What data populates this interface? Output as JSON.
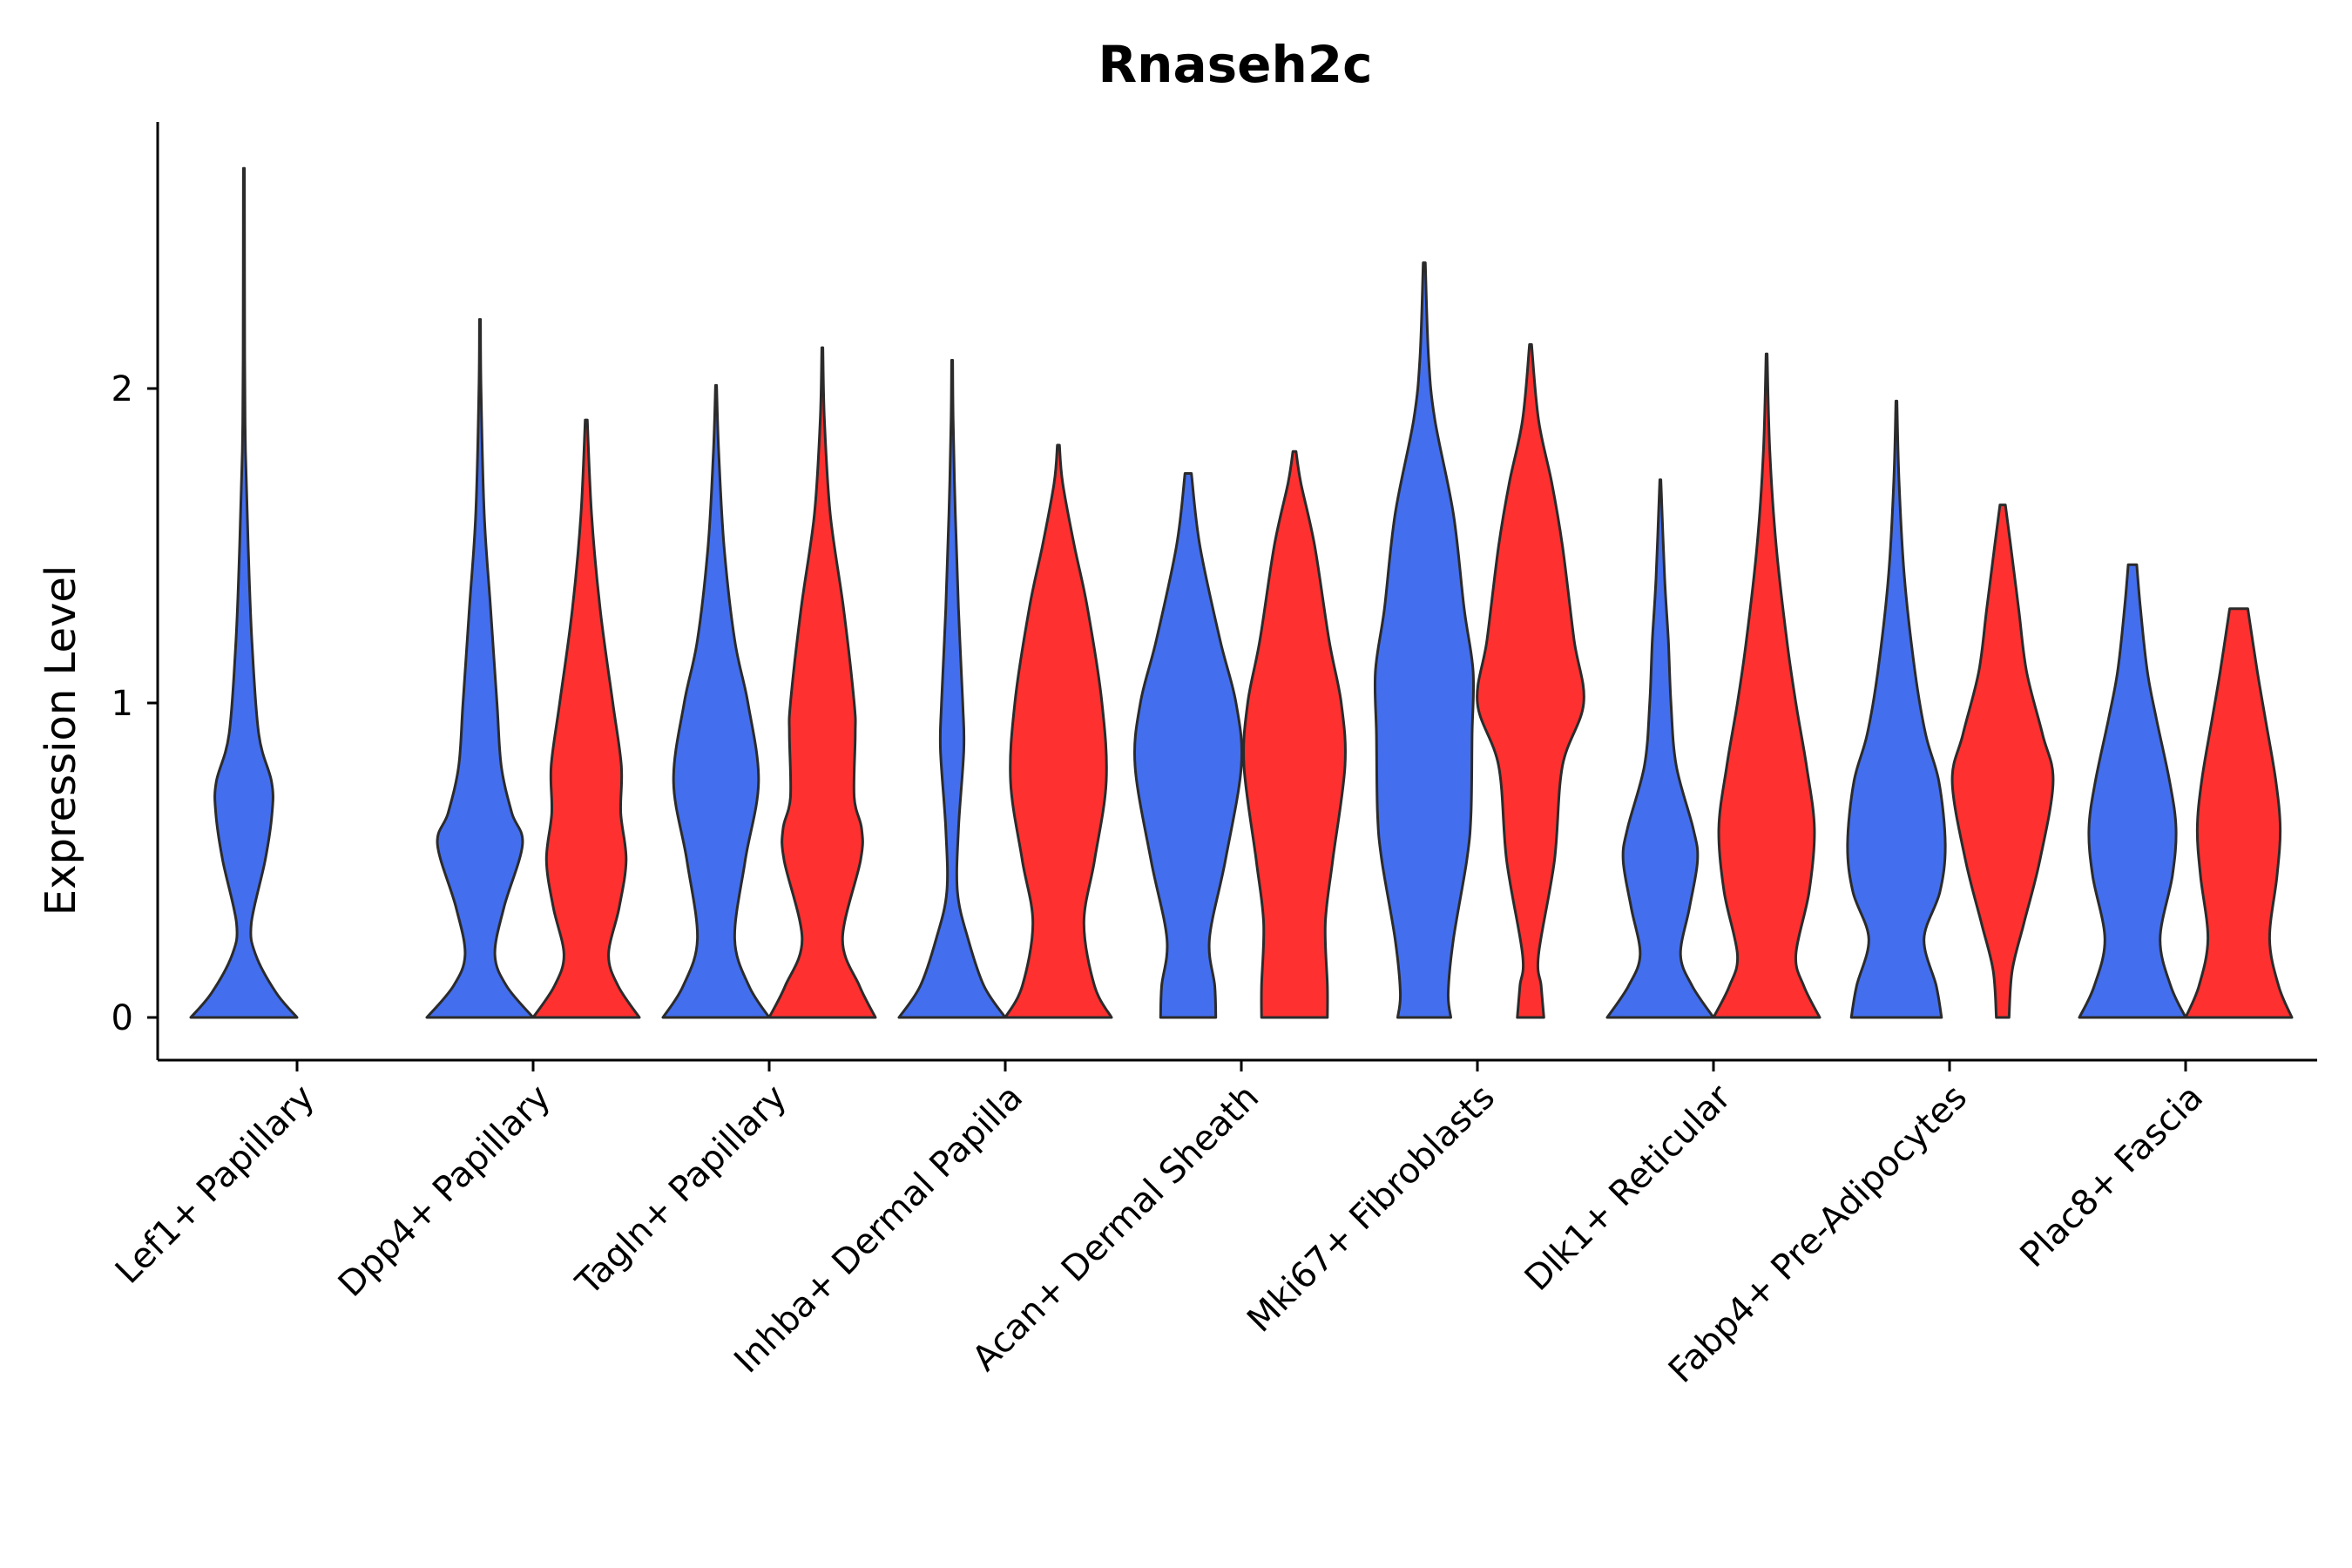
{
  "chart_data": {
    "type": "violin",
    "title": "Rnaseh2c",
    "xlabel": "",
    "ylabel": "Expression Level",
    "ylim": [
      -0.14,
      2.85
    ],
    "yticks": [
      0,
      1,
      2
    ],
    "grid": false,
    "legend": "none",
    "series_colors": [
      "#436EEE",
      "#FF3030"
    ],
    "categories": [
      "Lef1+ Papillary",
      "Dpp4+ Papillary",
      "Tagln+ Papillary",
      "Inhba+ Dermal Papilla",
      "Acan+ Dermal Sheath",
      "Mki67+ Fibroblasts",
      "Dlk1+ Reticular",
      "Fabp4+ Pre-Adipocytes",
      "Plac8+ Fascia"
    ],
    "violins": [
      {
        "category": "Lef1+ Papillary",
        "group": 0,
        "ymax": 2.7,
        "profile": [
          [
            0,
            1.0
          ],
          [
            0.08,
            0.6
          ],
          [
            0.2,
            0.22
          ],
          [
            0.3,
            0.14
          ],
          [
            0.5,
            0.4
          ],
          [
            0.65,
            0.53
          ],
          [
            0.75,
            0.52
          ],
          [
            0.9,
            0.28
          ],
          [
            1.2,
            0.15
          ],
          [
            1.5,
            0.08
          ],
          [
            1.8,
            0.03
          ],
          [
            2.1,
            0.015
          ],
          [
            2.7,
            0.01
          ]
        ]
      },
      {
        "category": "Dpp4+ Papillary",
        "group": 0,
        "ymax": 2.22,
        "profile": [
          [
            0,
            1.0
          ],
          [
            0.1,
            0.5
          ],
          [
            0.2,
            0.28
          ],
          [
            0.35,
            0.45
          ],
          [
            0.55,
            0.8
          ],
          [
            0.65,
            0.6
          ],
          [
            0.8,
            0.4
          ],
          [
            1.0,
            0.32
          ],
          [
            1.3,
            0.2
          ],
          [
            1.6,
            0.08
          ],
          [
            2.0,
            0.02
          ],
          [
            2.22,
            0.01
          ]
        ]
      },
      {
        "category": "Dpp4+ Papillary",
        "group": 1,
        "ymax": 1.9,
        "profile": [
          [
            0,
            1.0
          ],
          [
            0.1,
            0.6
          ],
          [
            0.2,
            0.42
          ],
          [
            0.35,
            0.62
          ],
          [
            0.5,
            0.75
          ],
          [
            0.65,
            0.65
          ],
          [
            0.8,
            0.66
          ],
          [
            1.0,
            0.5
          ],
          [
            1.3,
            0.26
          ],
          [
            1.6,
            0.1
          ],
          [
            1.9,
            0.02
          ]
        ]
      },
      {
        "category": "Tagln+ Papillary",
        "group": 0,
        "ymax": 2.01,
        "profile": [
          [
            0,
            1.0
          ],
          [
            0.1,
            0.62
          ],
          [
            0.25,
            0.35
          ],
          [
            0.5,
            0.55
          ],
          [
            0.75,
            0.8
          ],
          [
            1.0,
            0.6
          ],
          [
            1.2,
            0.35
          ],
          [
            1.5,
            0.15
          ],
          [
            1.8,
            0.05
          ],
          [
            2.01,
            0.01
          ]
        ]
      },
      {
        "category": "Tagln+ Papillary",
        "group": 1,
        "ymax": 2.13,
        "profile": [
          [
            0,
            1.0
          ],
          [
            0.1,
            0.7
          ],
          [
            0.25,
            0.38
          ],
          [
            0.5,
            0.72
          ],
          [
            0.6,
            0.74
          ],
          [
            0.7,
            0.6
          ],
          [
            0.9,
            0.62
          ],
          [
            1.0,
            0.6
          ],
          [
            1.3,
            0.4
          ],
          [
            1.6,
            0.15
          ],
          [
            1.9,
            0.04
          ],
          [
            2.13,
            0.01
          ]
        ]
      },
      {
        "category": "Inhba+ Dermal Papilla",
        "group": 0,
        "ymax": 2.09,
        "profile": [
          [
            0,
            1.0
          ],
          [
            0.1,
            0.6
          ],
          [
            0.25,
            0.3
          ],
          [
            0.4,
            0.1
          ],
          [
            0.6,
            0.12
          ],
          [
            0.85,
            0.22
          ],
          [
            1.0,
            0.2
          ],
          [
            1.3,
            0.12
          ],
          [
            1.6,
            0.06
          ],
          [
            1.9,
            0.02
          ],
          [
            2.09,
            0.01
          ]
        ]
      },
      {
        "category": "Inhba+ Dermal Papilla",
        "group": 1,
        "ymax": 1.82,
        "profile": [
          [
            0,
            1.0
          ],
          [
            0.1,
            0.68
          ],
          [
            0.3,
            0.48
          ],
          [
            0.5,
            0.68
          ],
          [
            0.75,
            0.9
          ],
          [
            1.0,
            0.82
          ],
          [
            1.3,
            0.55
          ],
          [
            1.5,
            0.3
          ],
          [
            1.7,
            0.08
          ],
          [
            1.82,
            0.02
          ]
        ]
      },
      {
        "category": "Acan+ Dermal Sheath",
        "group": 0,
        "ymax": 1.73,
        "profile": [
          [
            0,
            0.52
          ],
          [
            0.1,
            0.5
          ],
          [
            0.25,
            0.4
          ],
          [
            0.5,
            0.7
          ],
          [
            0.8,
            1.0
          ],
          [
            1.0,
            0.9
          ],
          [
            1.2,
            0.6
          ],
          [
            1.5,
            0.22
          ],
          [
            1.73,
            0.06
          ]
        ]
      },
      {
        "category": "Acan+ Dermal Sheath",
        "group": 1,
        "ymax": 1.8,
        "profile": [
          [
            0,
            0.62
          ],
          [
            0.1,
            0.62
          ],
          [
            0.3,
            0.58
          ],
          [
            0.5,
            0.72
          ],
          [
            0.8,
            0.95
          ],
          [
            1.0,
            0.88
          ],
          [
            1.2,
            0.65
          ],
          [
            1.5,
            0.38
          ],
          [
            1.7,
            0.12
          ],
          [
            1.8,
            0.03
          ]
        ]
      },
      {
        "category": "Mki67+ Fibroblasts",
        "group": 0,
        "ymax": 2.4,
        "profile": [
          [
            0,
            0.5
          ],
          [
            0.08,
            0.45
          ],
          [
            0.25,
            0.55
          ],
          [
            0.5,
            0.8
          ],
          [
            0.65,
            0.88
          ],
          [
            0.9,
            0.9
          ],
          [
            1.1,
            0.92
          ],
          [
            1.3,
            0.75
          ],
          [
            1.6,
            0.55
          ],
          [
            1.9,
            0.2
          ],
          [
            2.1,
            0.08
          ],
          [
            2.4,
            0.02
          ]
        ]
      },
      {
        "category": "Mki67+ Fibroblasts",
        "group": 1,
        "ymax": 2.14,
        "profile": [
          [
            0,
            0.25
          ],
          [
            0.1,
            0.2
          ],
          [
            0.2,
            0.15
          ],
          [
            0.5,
            0.45
          ],
          [
            0.8,
            0.6
          ],
          [
            1.0,
            1.0
          ],
          [
            1.2,
            0.82
          ],
          [
            1.5,
            0.6
          ],
          [
            1.7,
            0.4
          ],
          [
            1.9,
            0.15
          ],
          [
            2.14,
            0.02
          ]
        ]
      },
      {
        "category": "Dlk1+ Reticular",
        "group": 0,
        "ymax": 1.71,
        "profile": [
          [
            0,
            1.0
          ],
          [
            0.1,
            0.6
          ],
          [
            0.2,
            0.38
          ],
          [
            0.35,
            0.55
          ],
          [
            0.5,
            0.7
          ],
          [
            0.6,
            0.62
          ],
          [
            0.8,
            0.3
          ],
          [
            1.0,
            0.2
          ],
          [
            1.2,
            0.15
          ],
          [
            1.4,
            0.08
          ],
          [
            1.71,
            0.01
          ]
        ]
      },
      {
        "category": "Dlk1+ Reticular",
        "group": 1,
        "ymax": 2.11,
        "profile": [
          [
            0,
            1.0
          ],
          [
            0.1,
            0.7
          ],
          [
            0.2,
            0.55
          ],
          [
            0.4,
            0.8
          ],
          [
            0.6,
            0.9
          ],
          [
            0.8,
            0.75
          ],
          [
            1.0,
            0.55
          ],
          [
            1.2,
            0.38
          ],
          [
            1.5,
            0.18
          ],
          [
            1.8,
            0.06
          ],
          [
            2.11,
            0.01
          ]
        ]
      },
      {
        "category": "Fabp4+ Pre-Adipocytes",
        "group": 0,
        "ymax": 1.96,
        "profile": [
          [
            0,
            0.85
          ],
          [
            0.1,
            0.75
          ],
          [
            0.25,
            0.52
          ],
          [
            0.4,
            0.82
          ],
          [
            0.55,
            0.92
          ],
          [
            0.75,
            0.8
          ],
          [
            0.9,
            0.55
          ],
          [
            1.1,
            0.35
          ],
          [
            1.4,
            0.15
          ],
          [
            1.7,
            0.05
          ],
          [
            1.96,
            0.01
          ]
        ]
      },
      {
        "category": "Fabp4+ Pre-Adipocytes",
        "group": 1,
        "ymax": 1.63,
        "profile": [
          [
            0,
            0.12
          ],
          [
            0.15,
            0.18
          ],
          [
            0.3,
            0.4
          ],
          [
            0.5,
            0.7
          ],
          [
            0.75,
            0.95
          ],
          [
            0.9,
            0.75
          ],
          [
            1.1,
            0.45
          ],
          [
            1.3,
            0.3
          ],
          [
            1.5,
            0.15
          ],
          [
            1.63,
            0.05
          ]
        ]
      },
      {
        "category": "Plac8+ Fascia",
        "group": 0,
        "ymax": 1.44,
        "profile": [
          [
            0,
            1.0
          ],
          [
            0.1,
            0.72
          ],
          [
            0.25,
            0.52
          ],
          [
            0.45,
            0.75
          ],
          [
            0.6,
            0.82
          ],
          [
            0.75,
            0.7
          ],
          [
            0.95,
            0.45
          ],
          [
            1.1,
            0.28
          ],
          [
            1.3,
            0.15
          ],
          [
            1.44,
            0.08
          ]
        ]
      },
      {
        "category": "Plac8+ Fascia",
        "group": 1,
        "ymax": 1.3,
        "profile": [
          [
            0,
            1.0
          ],
          [
            0.1,
            0.75
          ],
          [
            0.25,
            0.58
          ],
          [
            0.45,
            0.72
          ],
          [
            0.6,
            0.78
          ],
          [
            0.75,
            0.7
          ],
          [
            0.95,
            0.5
          ],
          [
            1.1,
            0.35
          ],
          [
            1.3,
            0.17
          ]
        ]
      }
    ]
  }
}
